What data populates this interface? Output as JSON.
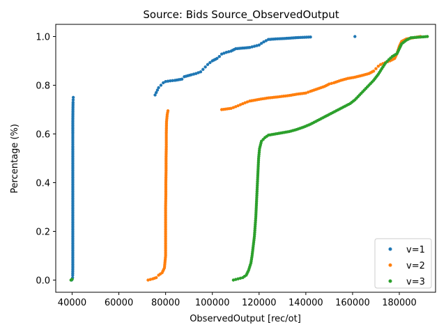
{
  "chart_data": {
    "type": "scatter",
    "title": "Source: Bids Source_ObservedOutput",
    "xlabel": "ObservedOutput [rec/ot]",
    "ylabel": "Percentage (%)",
    "xlim": [
      33000,
      195500
    ],
    "ylim": [
      -0.05,
      1.05
    ],
    "xticks": [
      40000,
      60000,
      80000,
      100000,
      120000,
      140000,
      160000,
      180000
    ],
    "xtick_labels": [
      "40000",
      "60000",
      "80000",
      "100000",
      "120000",
      "140000",
      "160000",
      "180000"
    ],
    "yticks": [
      0.0,
      0.2,
      0.4,
      0.6,
      0.8,
      1.0
    ],
    "ytick_labels": [
      "0.0",
      "0.2",
      "0.4",
      "0.6",
      "0.8",
      "1.0"
    ],
    "grid": false,
    "legend_position": "lower-right",
    "series": [
      {
        "name": "v=1",
        "color": "#1f77b4",
        "points": [
          [
            39800,
            0.0
          ],
          [
            40050,
            0.005
          ],
          [
            40200,
            0.01
          ],
          [
            40250,
            0.02
          ],
          [
            40300,
            0.05
          ],
          [
            40300,
            0.1
          ],
          [
            40300,
            0.15
          ],
          [
            40300,
            0.2
          ],
          [
            40300,
            0.25
          ],
          [
            40300,
            0.3
          ],
          [
            40300,
            0.35
          ],
          [
            40300,
            0.4
          ],
          [
            40300,
            0.45
          ],
          [
            40300,
            0.5
          ],
          [
            40300,
            0.55
          ],
          [
            40300,
            0.6
          ],
          [
            40300,
            0.65
          ],
          [
            40350,
            0.7
          ],
          [
            40400,
            0.73
          ],
          [
            40500,
            0.75
          ],
          [
            75500,
            0.76
          ],
          [
            76000,
            0.77
          ],
          [
            76500,
            0.78
          ],
          [
            77000,
            0.79
          ],
          [
            78000,
            0.8
          ],
          [
            79000,
            0.81
          ],
          [
            80000,
            0.815
          ],
          [
            82000,
            0.818
          ],
          [
            84000,
            0.82
          ],
          [
            87000,
            0.825
          ],
          [
            88000,
            0.835
          ],
          [
            91000,
            0.843
          ],
          [
            93000,
            0.848
          ],
          [
            95000,
            0.855
          ],
          [
            96000,
            0.865
          ],
          [
            97000,
            0.875
          ],
          [
            98000,
            0.885
          ],
          [
            99000,
            0.893
          ],
          [
            100000,
            0.9
          ],
          [
            102000,
            0.91
          ],
          [
            103000,
            0.918
          ],
          [
            104000,
            0.928
          ],
          [
            106000,
            0.935
          ],
          [
            108000,
            0.94
          ],
          [
            110000,
            0.95
          ],
          [
            116000,
            0.955
          ],
          [
            118000,
            0.96
          ],
          [
            120000,
            0.965
          ],
          [
            121000,
            0.972
          ],
          [
            122000,
            0.978
          ],
          [
            123000,
            0.983
          ],
          [
            124000,
            0.988
          ],
          [
            127000,
            0.99
          ],
          [
            131000,
            0.992
          ],
          [
            134000,
            0.994
          ],
          [
            137000,
            0.996
          ],
          [
            142000,
            0.998
          ],
          [
            161000,
            1.0
          ]
        ]
      },
      {
        "name": "v=2",
        "color": "#ff7f0e",
        "points": [
          [
            72500,
            0.0
          ],
          [
            74500,
            0.005
          ],
          [
            76000,
            0.01
          ],
          [
            77000,
            0.02
          ],
          [
            78500,
            0.03
          ],
          [
            79500,
            0.05
          ],
          [
            80000,
            0.1
          ],
          [
            80000,
            0.15
          ],
          [
            80000,
            0.2
          ],
          [
            80000,
            0.25
          ],
          [
            80000,
            0.3
          ],
          [
            80100,
            0.35
          ],
          [
            80100,
            0.4
          ],
          [
            80200,
            0.45
          ],
          [
            80200,
            0.5
          ],
          [
            80300,
            0.55
          ],
          [
            80300,
            0.6
          ],
          [
            80400,
            0.65
          ],
          [
            80700,
            0.68
          ],
          [
            81000,
            0.695
          ],
          [
            104000,
            0.7
          ],
          [
            108000,
            0.705
          ],
          [
            110000,
            0.712
          ],
          [
            112000,
            0.72
          ],
          [
            114000,
            0.728
          ],
          [
            116000,
            0.735
          ],
          [
            120000,
            0.742
          ],
          [
            124000,
            0.748
          ],
          [
            128000,
            0.752
          ],
          [
            133000,
            0.758
          ],
          [
            136000,
            0.763
          ],
          [
            140000,
            0.768
          ],
          [
            142000,
            0.775
          ],
          [
            145000,
            0.785
          ],
          [
            148000,
            0.795
          ],
          [
            150000,
            0.805
          ],
          [
            152000,
            0.81
          ],
          [
            155000,
            0.82
          ],
          [
            158000,
            0.828
          ],
          [
            161000,
            0.833
          ],
          [
            164000,
            0.84
          ],
          [
            167000,
            0.848
          ],
          [
            169000,
            0.858
          ],
          [
            170000,
            0.868
          ],
          [
            171000,
            0.878
          ],
          [
            172000,
            0.885
          ],
          [
            174000,
            0.893
          ],
          [
            176000,
            0.9
          ],
          [
            178000,
            0.91
          ],
          [
            179000,
            0.93
          ],
          [
            180000,
            0.96
          ],
          [
            181000,
            0.98
          ],
          [
            183000,
            0.99
          ],
          [
            186000,
            0.995
          ],
          [
            189000,
            1.0
          ]
        ]
      },
      {
        "name": "v=3",
        "color": "#2ca02c",
        "points": [
          [
            39500,
            0.0
          ],
          [
            40000,
            0.003
          ],
          [
            109000,
            0.0
          ],
          [
            111000,
            0.005
          ],
          [
            113000,
            0.01
          ],
          [
            114500,
            0.02
          ],
          [
            115500,
            0.04
          ],
          [
            116500,
            0.07
          ],
          [
            117000,
            0.1
          ],
          [
            117500,
            0.14
          ],
          [
            118000,
            0.18
          ],
          [
            118300,
            0.22
          ],
          [
            118600,
            0.26
          ],
          [
            118800,
            0.3
          ],
          [
            119000,
            0.34
          ],
          [
            119200,
            0.38
          ],
          [
            119400,
            0.42
          ],
          [
            119600,
            0.46
          ],
          [
            119800,
            0.5
          ],
          [
            120200,
            0.54
          ],
          [
            121000,
            0.57
          ],
          [
            122500,
            0.585
          ],
          [
            124000,
            0.595
          ],
          [
            127000,
            0.6
          ],
          [
            130000,
            0.605
          ],
          [
            133000,
            0.61
          ],
          [
            136000,
            0.618
          ],
          [
            139000,
            0.628
          ],
          [
            142000,
            0.64
          ],
          [
            145000,
            0.655
          ],
          [
            148000,
            0.67
          ],
          [
            150000,
            0.68
          ],
          [
            153000,
            0.695
          ],
          [
            156000,
            0.71
          ],
          [
            159000,
            0.725
          ],
          [
            161000,
            0.74
          ],
          [
            163000,
            0.76
          ],
          [
            165000,
            0.78
          ],
          [
            167000,
            0.8
          ],
          [
            169000,
            0.82
          ],
          [
            171000,
            0.845
          ],
          [
            172500,
            0.868
          ],
          [
            174000,
            0.89
          ],
          [
            175500,
            0.905
          ],
          [
            177000,
            0.918
          ],
          [
            179000,
            0.93
          ],
          [
            180000,
            0.95
          ],
          [
            181000,
            0.97
          ],
          [
            183000,
            0.985
          ],
          [
            185000,
            0.995
          ],
          [
            192000,
            1.0
          ]
        ]
      }
    ]
  }
}
